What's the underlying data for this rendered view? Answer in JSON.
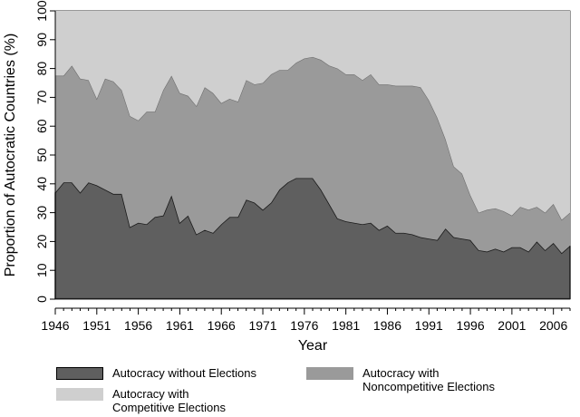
{
  "chart_data": {
    "type": "area",
    "stacked": true,
    "xlabel": "Year",
    "ylabel": "Proportion of Autocratic Countries (%)",
    "xlim": [
      1946,
      2008
    ],
    "ylim": [
      0,
      100
    ],
    "xticks": [
      "1946",
      "1951",
      "1956",
      "1961",
      "1966",
      "1971",
      "1976",
      "1981",
      "1986",
      "1991",
      "1996",
      "2001",
      "2006"
    ],
    "yticks": [
      "0",
      "10",
      "20",
      "30",
      "40",
      "50",
      "60",
      "70",
      "80",
      "90",
      "100"
    ],
    "grid": false,
    "legend_position": "bottom",
    "x": [
      1946,
      1947,
      1948,
      1949,
      1950,
      1951,
      1952,
      1953,
      1954,
      1955,
      1956,
      1957,
      1958,
      1959,
      1960,
      1961,
      1962,
      1963,
      1964,
      1965,
      1966,
      1967,
      1968,
      1969,
      1970,
      1971,
      1972,
      1973,
      1974,
      1975,
      1976,
      1977,
      1978,
      1979,
      1980,
      1981,
      1982,
      1983,
      1984,
      1985,
      1986,
      1987,
      1988,
      1989,
      1990,
      1991,
      1992,
      1993,
      1994,
      1995,
      1996,
      1997,
      1998,
      1999,
      2000,
      2001,
      2002,
      2003,
      2004,
      2005,
      2006,
      2007,
      2008
    ],
    "series": [
      {
        "name": "Autocracy without Elections",
        "color": "#5f5f5f",
        "values": [
          37,
          40.5,
          40.5,
          37,
          40.5,
          39.5,
          38,
          36.5,
          36.5,
          25,
          26.5,
          26,
          28.5,
          29,
          36,
          26.5,
          29,
          22.5,
          24,
          23,
          26,
          28.5,
          28.5,
          34.5,
          33.5,
          31,
          33.5,
          38,
          40.5,
          42,
          42,
          42,
          38,
          33,
          28,
          27,
          26.5,
          26,
          26.5,
          24,
          25.5,
          23,
          23,
          22.5,
          21.5,
          21,
          20.5,
          24.5,
          21.5,
          21,
          20.5,
          17,
          16.5,
          17.5,
          16.5,
          18,
          18,
          16.5,
          20,
          17,
          19.5,
          16,
          18.5
        ]
      },
      {
        "name": "Autocracy with\nNoncompetitive Elections",
        "color": "#9a9a9a",
        "values": [
          40.5,
          37,
          40.5,
          39.5,
          35.5,
          30,
          38.5,
          39,
          36,
          38.5,
          35.5,
          39,
          36.5,
          43.5,
          41.5,
          45,
          41.5,
          44.5,
          49.5,
          48.5,
          42,
          41,
          40,
          41.5,
          41,
          44,
          44.5,
          41.5,
          39,
          40,
          41.5,
          42,
          45,
          48,
          52,
          51,
          51.5,
          50,
          51.5,
          50.5,
          49,
          51,
          51,
          51.5,
          52,
          48,
          42.5,
          31,
          24.5,
          22.5,
          15.5,
          13,
          14.5,
          14,
          14,
          11,
          14,
          14.5,
          12,
          13,
          13.5,
          11.5,
          11.5
        ]
      },
      {
        "name": "Autocracy with\nCompetitive Elections",
        "color": "#cfcfcf",
        "values": [
          22.5,
          22.5,
          19,
          23.5,
          24,
          30.5,
          23.5,
          24.5,
          27.5,
          36.5,
          38,
          35,
          35,
          27.5,
          22.5,
          28.5,
          29.5,
          33,
          26.5,
          28.5,
          32,
          30.5,
          31.5,
          24,
          25.5,
          25,
          22,
          20.5,
          20.5,
          18,
          16.5,
          16,
          17,
          19,
          20,
          22,
          22,
          24,
          22,
          25.5,
          25.5,
          26,
          26,
          26,
          26.5,
          31,
          37,
          44.5,
          54,
          56.5,
          64,
          70,
          69,
          68.5,
          69.5,
          71,
          68,
          69,
          68,
          70,
          67,
          72.5,
          70
        ]
      }
    ]
  }
}
